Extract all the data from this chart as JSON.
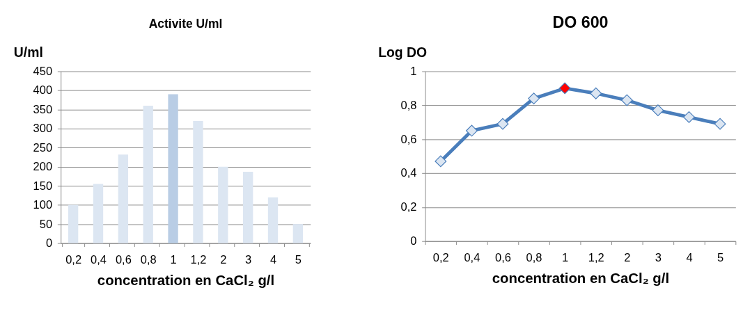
{
  "chart_data": [
    {
      "type": "bar",
      "title": "Activite U/ml",
      "ylabel": "U/ml",
      "xlabel": "concentration en CaCl₂ g/l",
      "categories": [
        "0,2",
        "0,4",
        "0,6",
        "0,8",
        "1",
        "1,2",
        "2",
        "3",
        "4",
        "5"
      ],
      "values": [
        100,
        155,
        232,
        360,
        390,
        320,
        200,
        187,
        120,
        50
      ],
      "colors": [
        "#dce6f2",
        "#dce6f2",
        "#dce6f2",
        "#dce6f2",
        "#b9cde5",
        "#dce6f2",
        "#dce6f2",
        "#dce6f2",
        "#dce6f2",
        "#dce6f2"
      ],
      "ylim": [
        0,
        450
      ],
      "yticks": [
        0,
        50,
        100,
        150,
        200,
        250,
        300,
        350,
        400,
        450
      ],
      "grid": "y"
    },
    {
      "type": "line",
      "title": "DO 600",
      "ylabel": "Log DO",
      "xlabel": "concentration en CaCl₂ g/l",
      "categories": [
        "0,2",
        "0,4",
        "0,6",
        "0,8",
        "1",
        "1,2",
        "2",
        "3",
        "4",
        "5"
      ],
      "series": [
        {
          "color": "#4a7ebb",
          "values": [
            0.47,
            0.65,
            0.69,
            0.84,
            0.9,
            0.87,
            0.83,
            0.77,
            0.73,
            0.69
          ],
          "colors": [
            "#dce6f2",
            "#dce6f2",
            "#dce6f2",
            "#dce6f2",
            "#ff0000",
            "#dce6f2",
            "#dce6f2",
            "#dce6f2",
            "#dce6f2",
            "#dce6f2"
          ]
        }
      ],
      "ylim": [
        0,
        1
      ],
      "yticks": [
        {
          "value": 0,
          "label": "0"
        },
        {
          "value": 0.2,
          "label": "0,2"
        },
        {
          "value": 0.4,
          "label": "0,4"
        },
        {
          "value": 0.6,
          "label": "0,6"
        },
        {
          "value": 0.8,
          "label": "0,8"
        },
        {
          "value": 1,
          "label": "1"
        }
      ],
      "grid": "y",
      "marker": "diamond",
      "line_style": "solid"
    }
  ]
}
